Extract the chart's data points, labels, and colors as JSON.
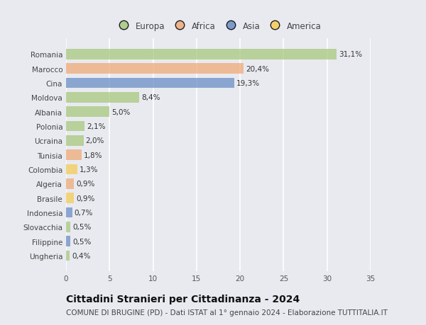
{
  "categories": [
    "Romania",
    "Marocco",
    "Cina",
    "Moldova",
    "Albania",
    "Polonia",
    "Ucraina",
    "Tunisia",
    "Colombia",
    "Algeria",
    "Brasile",
    "Indonesia",
    "Slovacchia",
    "Filippine",
    "Ungheria"
  ],
  "values": [
    31.1,
    20.4,
    19.3,
    8.4,
    5.0,
    2.1,
    2.0,
    1.8,
    1.3,
    0.9,
    0.9,
    0.7,
    0.5,
    0.5,
    0.4
  ],
  "labels": [
    "31,1%",
    "20,4%",
    "19,3%",
    "8,4%",
    "5,0%",
    "2,1%",
    "2,0%",
    "1,8%",
    "1,3%",
    "0,9%",
    "0,9%",
    "0,7%",
    "0,5%",
    "0,5%",
    "0,4%"
  ],
  "continents": [
    "Europa",
    "Africa",
    "Asia",
    "Europa",
    "Europa",
    "Europa",
    "Europa",
    "Africa",
    "America",
    "Africa",
    "America",
    "Asia",
    "Europa",
    "Asia",
    "Europa"
  ],
  "continent_colors": {
    "Europa": "#a8c87e",
    "Africa": "#f0aa78",
    "Asia": "#6b8ec4",
    "America": "#f5cc55"
  },
  "legend_order": [
    "Europa",
    "Africa",
    "Asia",
    "America"
  ],
  "title": "Cittadini Stranieri per Cittadinanza - 2024",
  "subtitle": "COMUNE DI BRUGINE (PD) - Dati ISTAT al 1° gennaio 2024 - Elaborazione TUTTITALIA.IT",
  "xlim": [
    0,
    35
  ],
  "xticks": [
    0,
    5,
    10,
    15,
    20,
    25,
    30,
    35
  ],
  "background_color": "#e8eaf0",
  "plot_bg_color": "#e8eaf0",
  "grid_color": "#ffffff",
  "title_fontsize": 10,
  "subtitle_fontsize": 7.5,
  "label_fontsize": 7.5,
  "ytick_fontsize": 7.5,
  "xtick_fontsize": 7.5,
  "legend_fontsize": 8.5
}
